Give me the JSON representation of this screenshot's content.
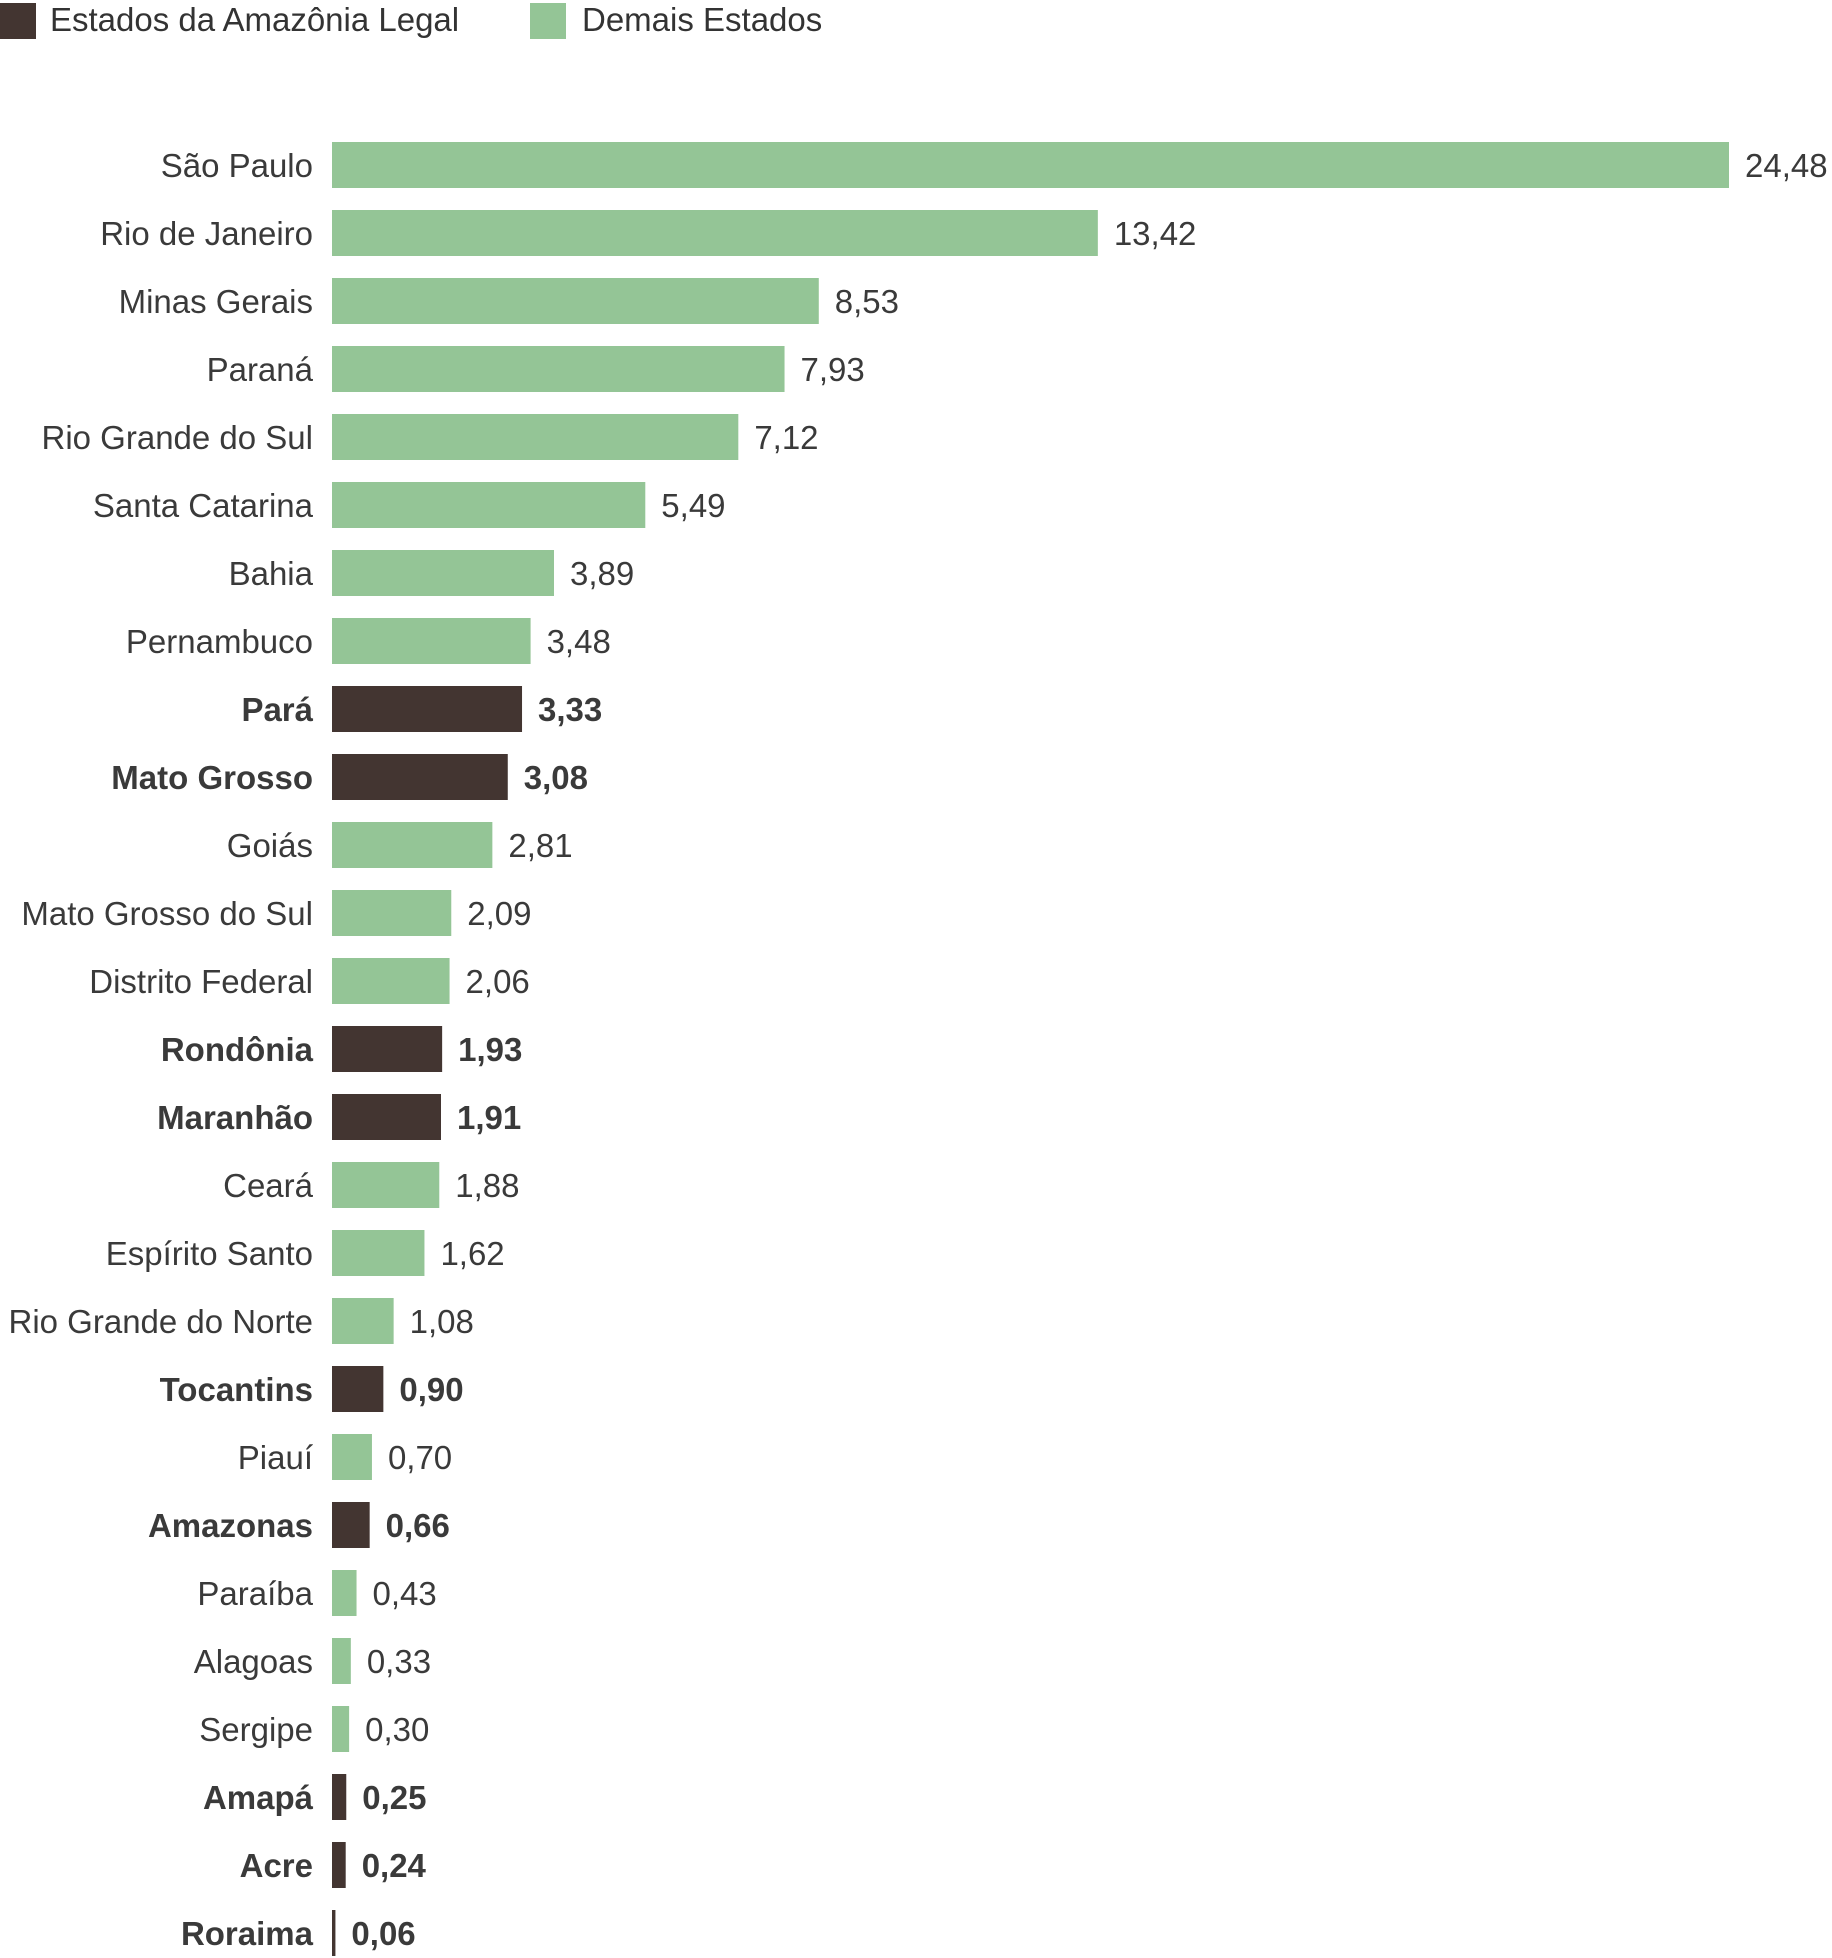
{
  "chart_data": {
    "type": "bar",
    "orientation": "horizontal",
    "legend": {
      "placement": "top-left",
      "items": [
        {
          "label": "Estados da Amazônia Legal",
          "color": "#433531"
        },
        {
          "label": "Demais Estados",
          "color": "#94c596"
        }
      ]
    },
    "categories": [
      "São Paulo",
      "Rio de Janeiro",
      "Minas Gerais",
      "Paraná",
      "Rio Grande do Sul",
      "Santa Catarina",
      "Bahia",
      "Pernambuco",
      "Pará",
      "Mato Grosso",
      "Goiás",
      "Mato Grosso do Sul",
      "Distrito Federal",
      "Rondônia",
      "Maranhão",
      "Ceará",
      "Espírito Santo",
      "Rio Grande do Norte",
      "Tocantins",
      "Piauí",
      "Amazonas",
      "Paraíba",
      "Alagoas",
      "Sergipe",
      "Amapá",
      "Acre",
      "Roraima"
    ],
    "values": [
      24.48,
      13.42,
      8.53,
      7.93,
      7.12,
      5.49,
      3.89,
      3.48,
      3.33,
      3.08,
      2.81,
      2.09,
      2.06,
      1.93,
      1.91,
      1.88,
      1.62,
      1.08,
      0.9,
      0.7,
      0.66,
      0.43,
      0.33,
      0.3,
      0.25,
      0.24,
      0.06
    ],
    "value_labels": [
      "24,48",
      "13,42",
      "8,53",
      "7,93",
      "7,12",
      "5,49",
      "3,89",
      "3,48",
      "3,33",
      "3,08",
      "2,81",
      "2,09",
      "2,06",
      "1,93",
      "1,91",
      "1,88",
      "1,62",
      "1,08",
      "0,90",
      "0,70",
      "0,66",
      "0,43",
      "0,33",
      "0,30",
      "0,25",
      "0,24",
      "0,06"
    ],
    "amazonia_legal": [
      false,
      false,
      false,
      false,
      false,
      false,
      false,
      false,
      true,
      true,
      false,
      false,
      false,
      true,
      true,
      false,
      false,
      false,
      true,
      false,
      true,
      false,
      false,
      false,
      true,
      true,
      true
    ],
    "xlim": [
      0,
      24.48
    ],
    "grid": false,
    "title": "",
    "xlabel": "",
    "ylabel": ""
  }
}
